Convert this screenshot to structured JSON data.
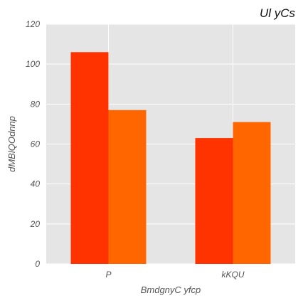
{
  "chart_data": {
    "type": "bar",
    "title": "Ul yCs",
    "xlabel": "BmdgnyC yfcp",
    "ylabel": "dMBlQOdnnp",
    "categories": [
      "P",
      "kKQU"
    ],
    "series": [
      {
        "values": [
          106,
          63
        ],
        "color": "#ff3300"
      },
      {
        "values": [
          77,
          71
        ],
        "color": "#ff6600"
      }
    ],
    "ylim": [
      0,
      120
    ],
    "yticks": [
      0,
      20,
      40,
      60,
      80,
      100,
      120
    ],
    "grid": true,
    "legend": "none",
    "background_color": "#e5e5e5",
    "grid_color": "#ffffff"
  }
}
